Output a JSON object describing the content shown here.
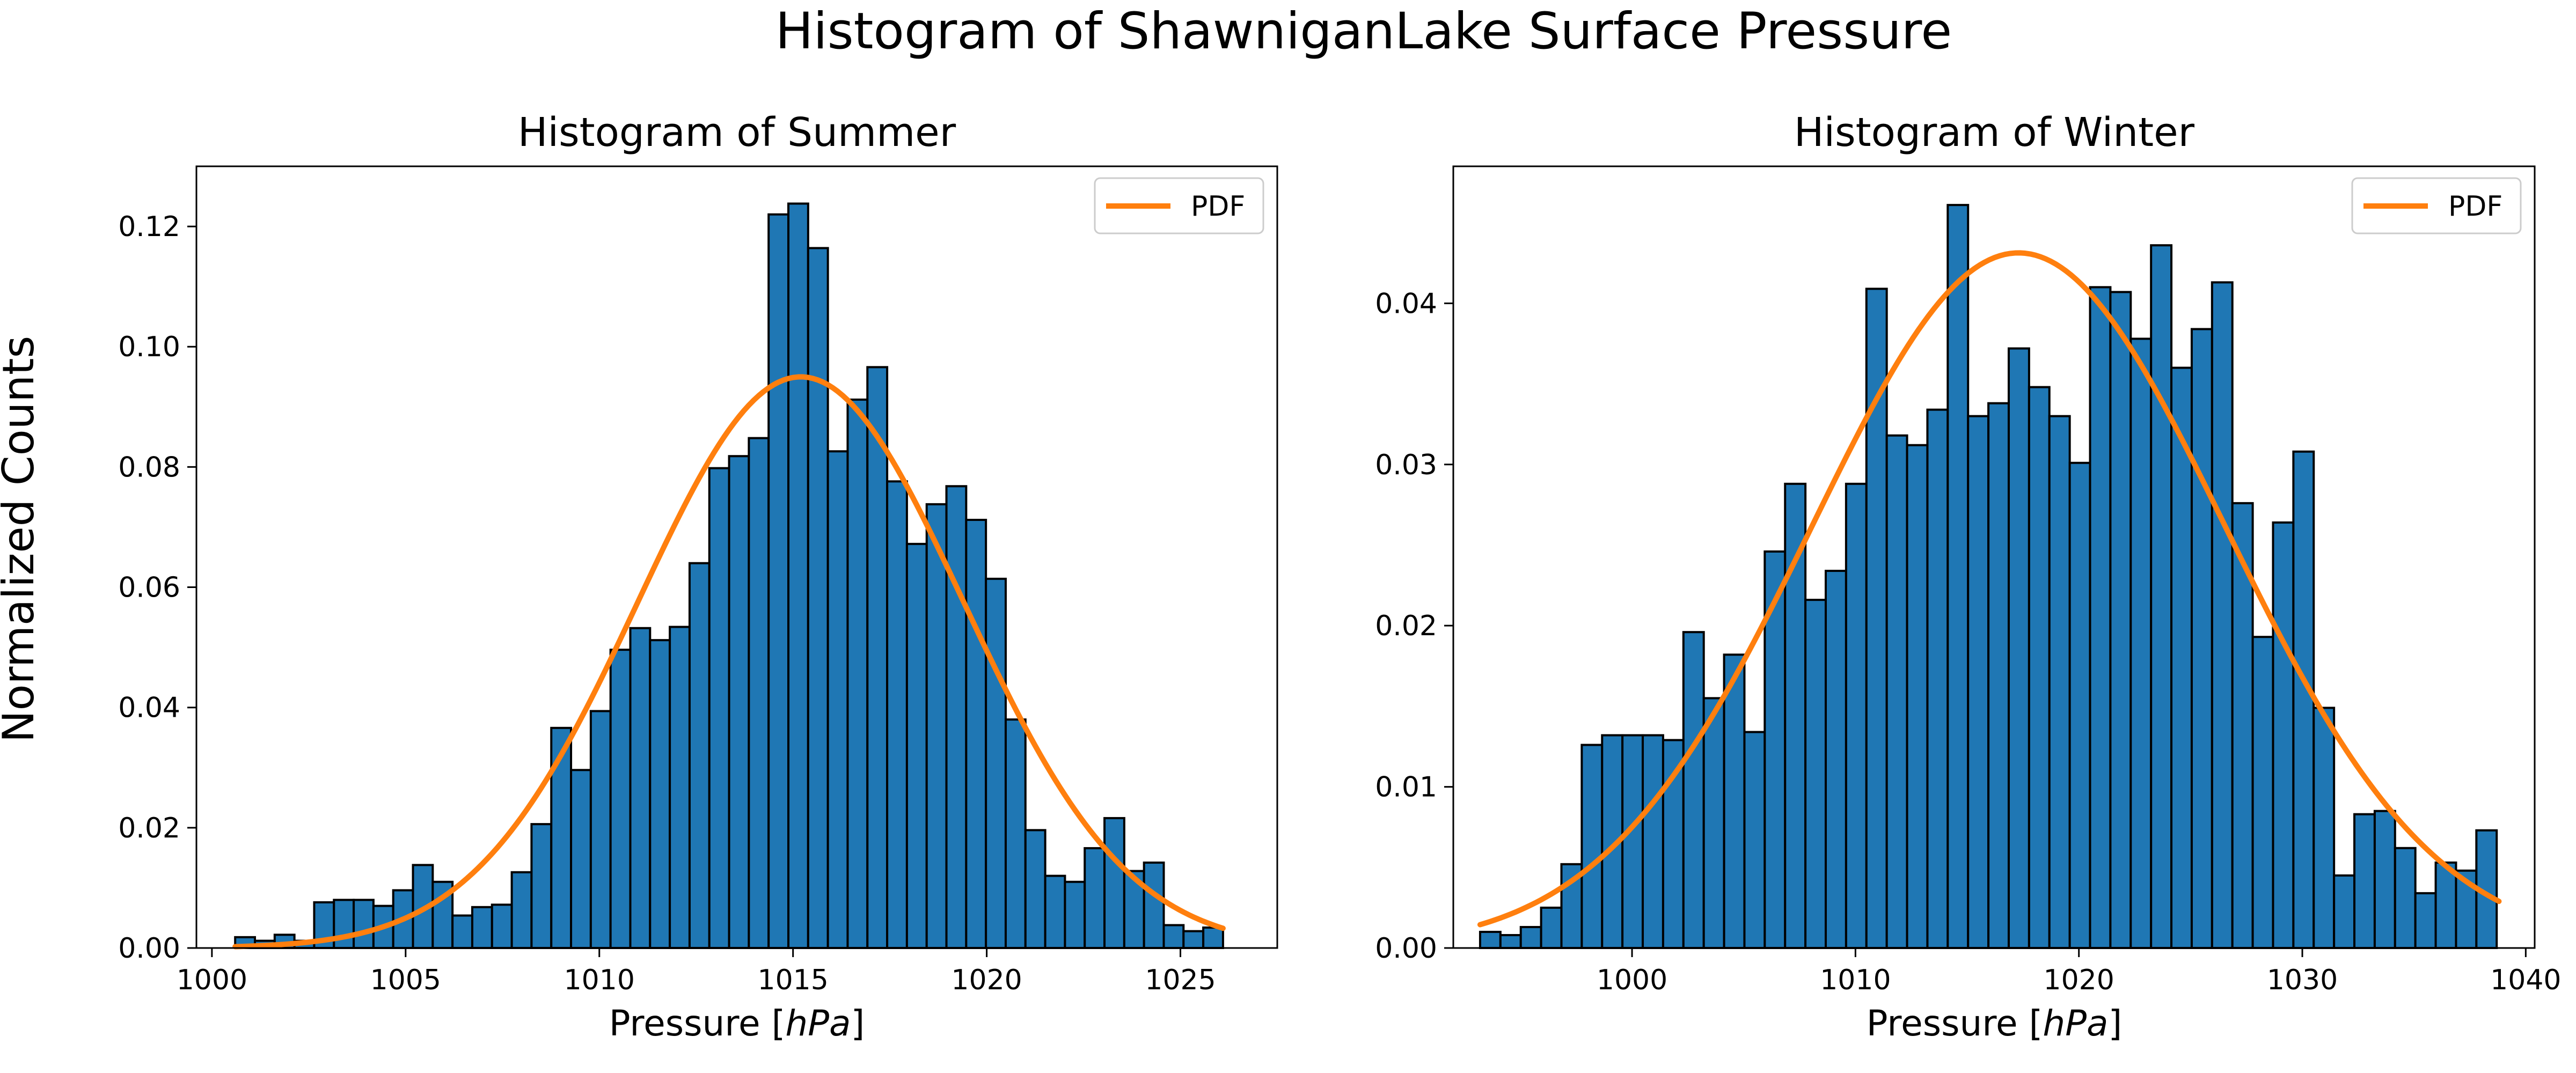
{
  "suptitle": "Histogram of ShawniganLake Surface Pressure",
  "ylabel": "Normalized Counts",
  "colors": {
    "bar": "#1f77b4",
    "edge": "#000000",
    "pdf": "#ff7f0e"
  },
  "chart_data": [
    {
      "type": "bar",
      "title": "Histogram of Summer",
      "xlabel": "Pressure [hPa]",
      "xlim": [
        999.6,
        1027.5
      ],
      "ylim": [
        0,
        0.13
      ],
      "xticks": [
        "1000",
        "1005",
        "1010",
        "1015",
        "1020",
        "1025"
      ],
      "yticks": [
        "0.00",
        "0.02",
        "0.04",
        "0.06",
        "0.08",
        "0.10",
        "0.12"
      ],
      "bin_start": 1000.6,
      "bin_width": 0.51,
      "values": [
        0.0018,
        0.0012,
        0.0022,
        0.0012,
        0.0076,
        0.008,
        0.008,
        0.007,
        0.0096,
        0.0138,
        0.011,
        0.0054,
        0.0068,
        0.0072,
        0.0126,
        0.0206,
        0.0366,
        0.0296,
        0.0394,
        0.0496,
        0.0532,
        0.0512,
        0.0534,
        0.064,
        0.0798,
        0.0818,
        0.0848,
        0.122,
        0.1238,
        0.1164,
        0.0826,
        0.0912,
        0.0966,
        0.0776,
        0.0672,
        0.0738,
        0.0768,
        0.0712,
        0.0614,
        0.038,
        0.0196,
        0.012,
        0.011,
        0.0166,
        0.0216,
        0.0128,
        0.0142,
        0.0038,
        0.0028,
        0.0034
      ],
      "legend": "PDF",
      "legend_loc": "upper right",
      "pdf": {
        "mean": 1015.2,
        "std": 4.2,
        "x_range": [
          1000.6,
          1026.1
        ]
      }
    },
    {
      "type": "bar",
      "title": "Histogram of Winter",
      "xlabel": "Pressure [hPa]",
      "xlim": [
        992.0,
        1040.4
      ],
      "ylim": [
        0,
        0.0485
      ],
      "xticks": [
        "1000",
        "1010",
        "1020",
        "1030",
        "1040"
      ],
      "yticks": [
        "0.00",
        "0.01",
        "0.02",
        "0.03",
        "0.04"
      ],
      "bin_start": 993.2,
      "bin_width": 0.91,
      "values": [
        0.001,
        0.0008,
        0.0013,
        0.0025,
        0.0052,
        0.0126,
        0.0132,
        0.0132,
        0.0132,
        0.0129,
        0.0196,
        0.0155,
        0.0182,
        0.0134,
        0.0246,
        0.0288,
        0.0216,
        0.0234,
        0.0288,
        0.0409,
        0.0318,
        0.0312,
        0.0334,
        0.0461,
        0.033,
        0.0338,
        0.0372,
        0.0348,
        0.033,
        0.0301,
        0.041,
        0.0407,
        0.0378,
        0.0436,
        0.036,
        0.0384,
        0.0413,
        0.0276,
        0.0193,
        0.0264,
        0.0308,
        0.0149,
        0.0045,
        0.0083,
        0.0085,
        0.0062,
        0.0034,
        0.0053,
        0.0048,
        0.0073
      ],
      "legend": "PDF",
      "legend_loc": "upper right",
      "pdf": {
        "mean": 1017.3,
        "std": 9.25,
        "x_range": [
          993.2,
          1038.8
        ]
      }
    }
  ]
}
